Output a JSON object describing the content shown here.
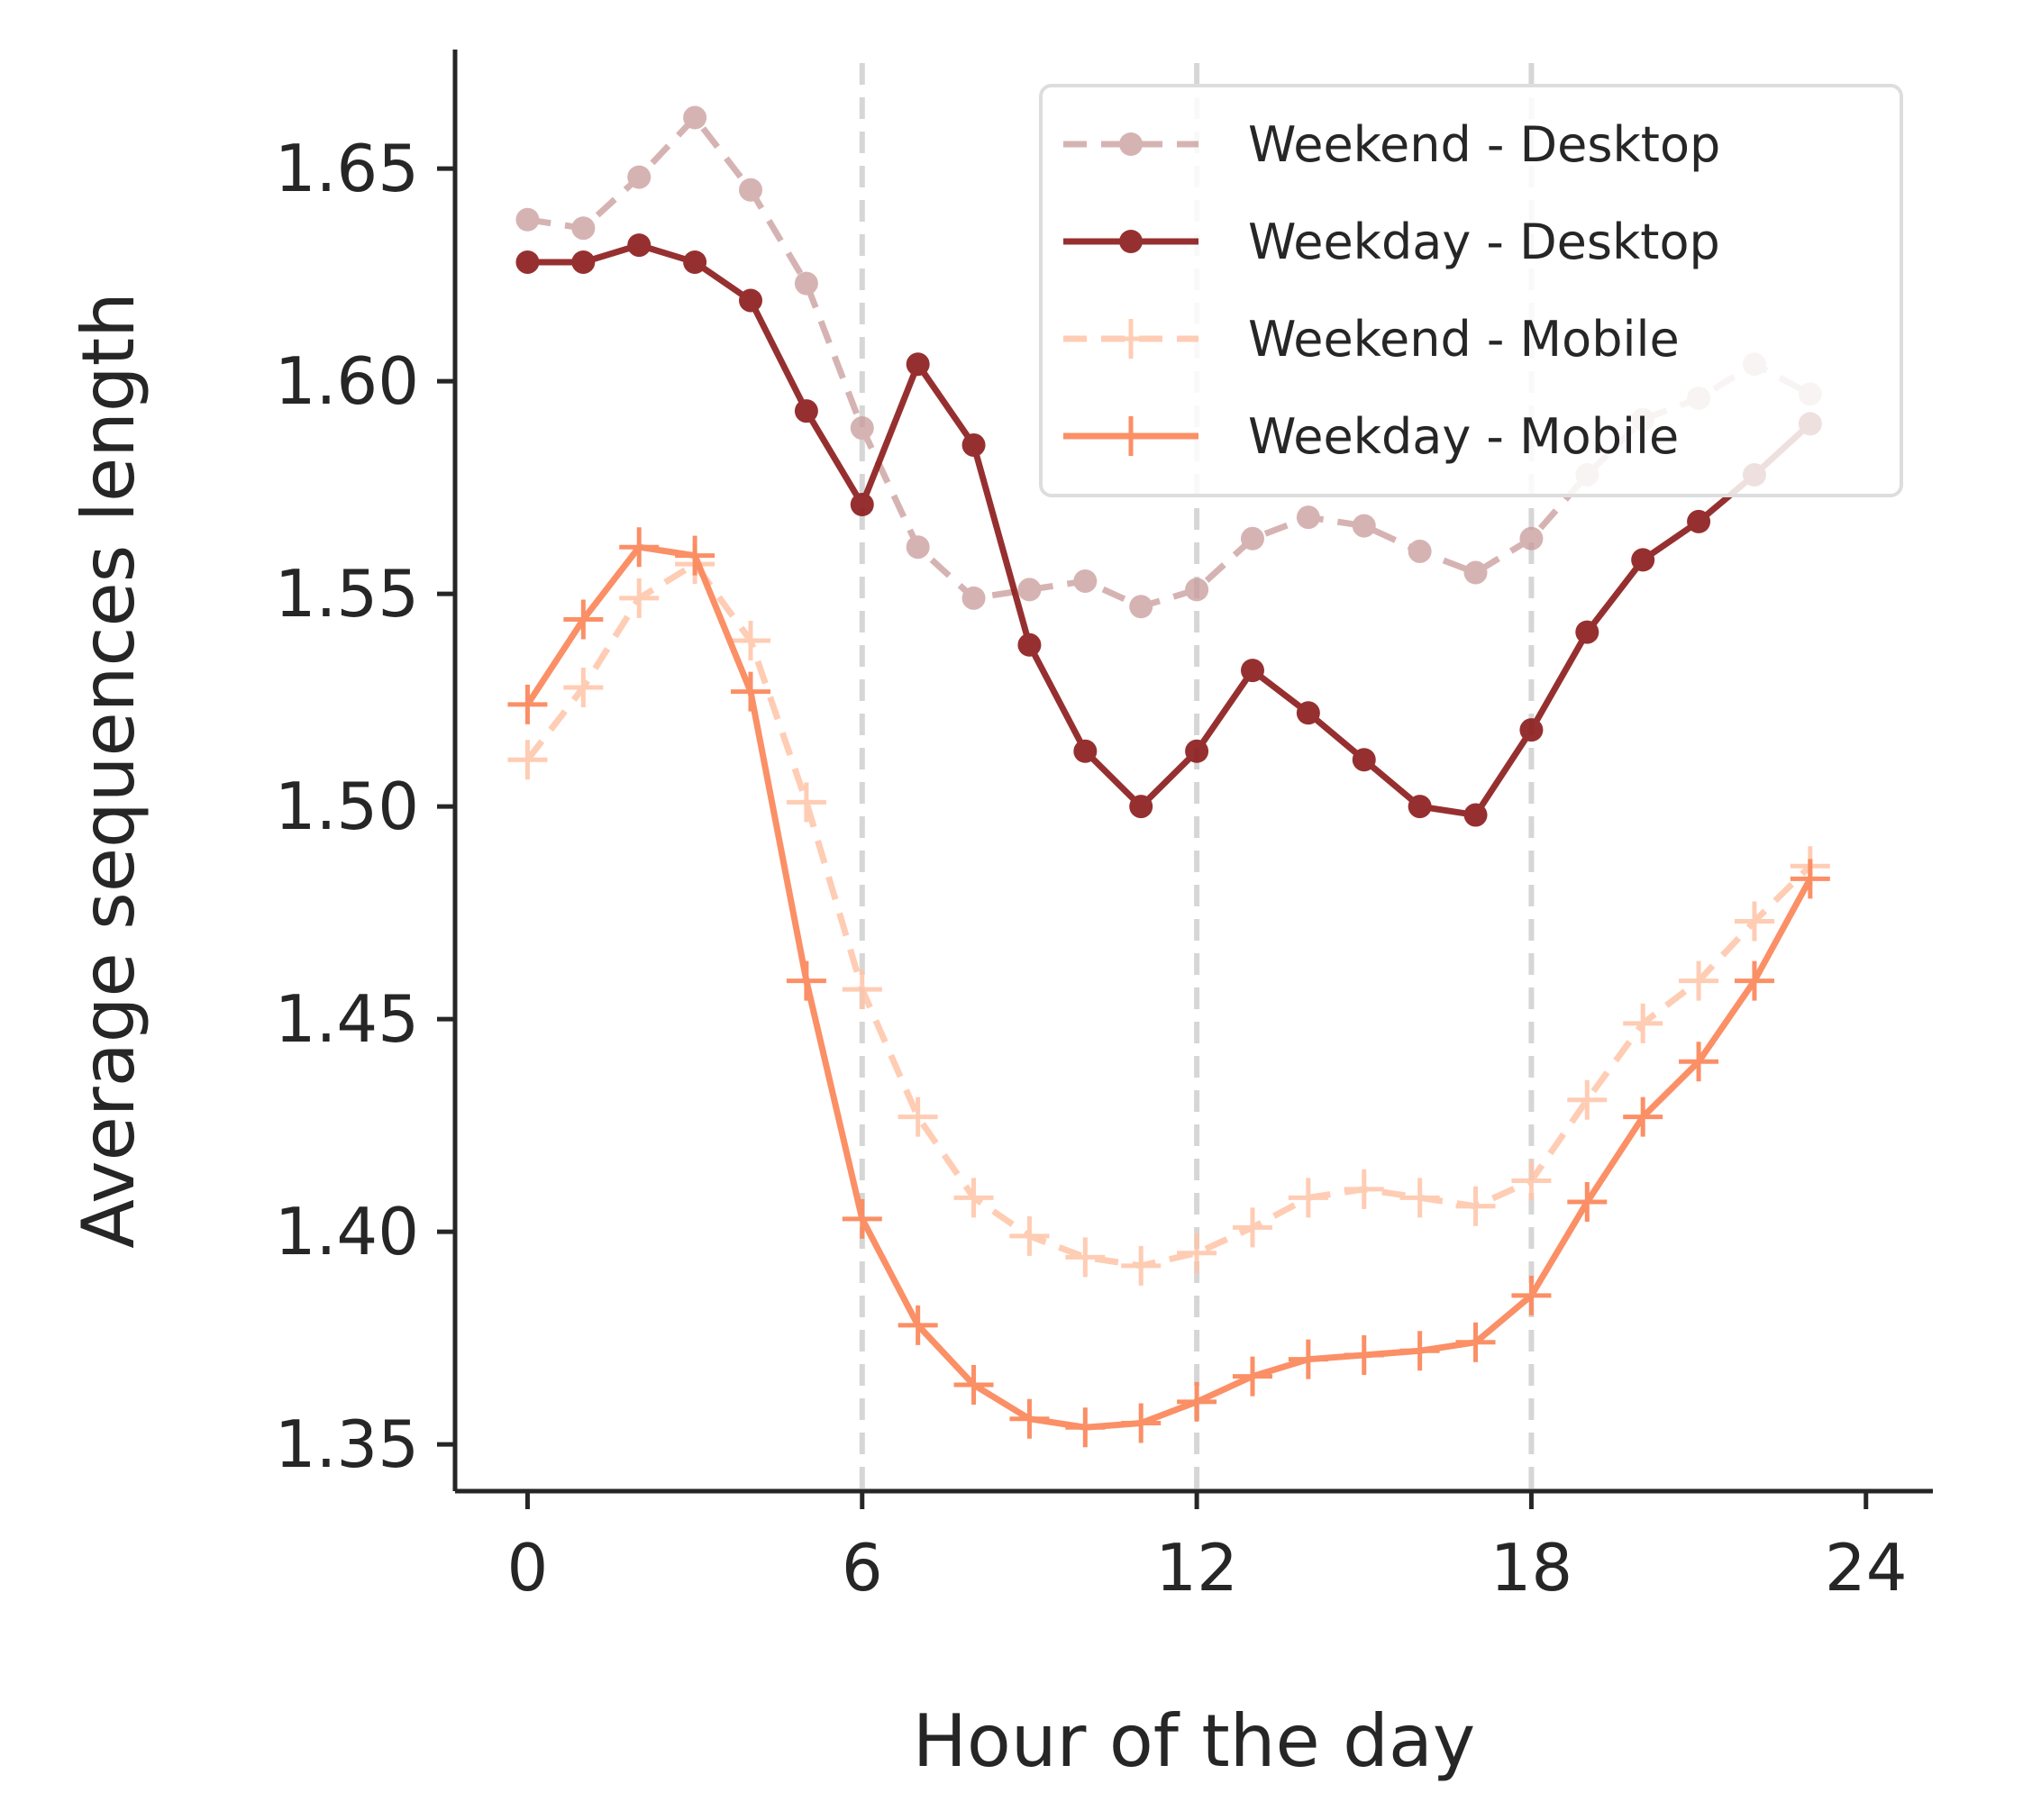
{
  "chart_data": {
    "type": "line",
    "title": "",
    "xlabel": "Hour of the day",
    "ylabel": "Average sequences length",
    "xlim": [
      -1.3,
      25.2
    ],
    "ylim": [
      1.339,
      1.678
    ],
    "xticks": [
      0,
      6,
      12,
      18,
      24
    ],
    "yticks": [
      1.35,
      1.4,
      1.45,
      1.5,
      1.55,
      1.6,
      1.65
    ],
    "ytick_labels": [
      "1.35",
      "1.40",
      "1.45",
      "1.50",
      "1.55",
      "1.60",
      "1.65"
    ],
    "vlines": [
      6,
      12,
      18
    ],
    "grid": false,
    "legend_position": "top-right",
    "x": [
      0,
      1,
      2,
      3,
      4,
      5,
      6,
      7,
      8,
      9,
      10,
      11,
      12,
      13,
      14,
      15,
      16,
      17,
      18,
      19,
      20,
      21,
      22,
      23
    ],
    "series": [
      {
        "name": "Weekend - Desktop",
        "color": "#c99a9a",
        "dash": "dashed",
        "marker": "circle",
        "opacity": 0.75,
        "values": [
          1.638,
          1.636,
          1.648,
          1.662,
          1.645,
          1.623,
          1.589,
          1.561,
          1.549,
          1.551,
          1.553,
          1.547,
          1.551,
          1.563,
          1.568,
          1.566,
          1.56,
          1.555,
          1.563,
          1.578,
          1.591,
          1.596,
          1.604,
          1.597
        ]
      },
      {
        "name": "Weekday - Desktop",
        "color": "#8b1a1a",
        "dash": "solid",
        "marker": "circle",
        "opacity": 0.9,
        "values": [
          1.628,
          1.628,
          1.632,
          1.628,
          1.619,
          1.593,
          1.571,
          1.604,
          1.585,
          1.538,
          1.513,
          1.5,
          1.513,
          1.532,
          1.522,
          1.511,
          1.5,
          1.498,
          1.518,
          1.541,
          1.558,
          1.567,
          1.578,
          1.59
        ]
      },
      {
        "name": "Weekend - Mobile",
        "color": "#ffc4a8",
        "dash": "dashed",
        "marker": "plus",
        "opacity": 0.85,
        "values": [
          1.511,
          1.528,
          1.549,
          1.557,
          1.539,
          1.501,
          1.457,
          1.427,
          1.408,
          1.399,
          1.394,
          1.392,
          1.395,
          1.401,
          1.408,
          1.41,
          1.408,
          1.406,
          1.412,
          1.431,
          1.449,
          1.459,
          1.473,
          1.486
        ]
      },
      {
        "name": "Weekday - Mobile",
        "color": "#fb8a5e",
        "dash": "solid",
        "marker": "plus",
        "opacity": 0.95,
        "values": [
          1.524,
          1.544,
          1.561,
          1.559,
          1.527,
          1.459,
          1.403,
          1.378,
          1.364,
          1.356,
          1.354,
          1.355,
          1.36,
          1.366,
          1.37,
          1.371,
          1.372,
          1.374,
          1.385,
          1.407,
          1.427,
          1.44,
          1.459,
          1.483
        ]
      }
    ]
  }
}
